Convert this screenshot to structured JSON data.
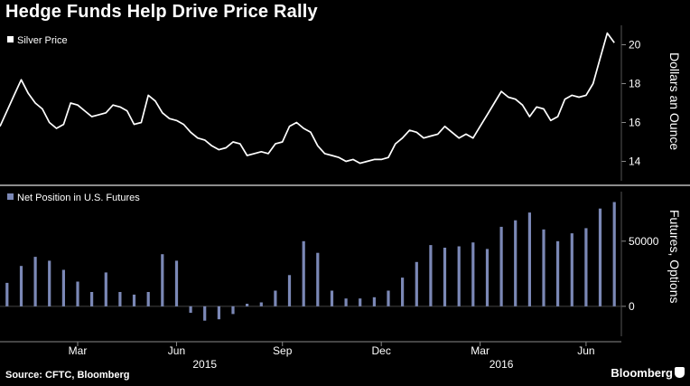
{
  "title": "Hedge Funds Help Drive Price Rally",
  "source": "Source: CFTC, Bloomberg",
  "brand": "Bloomberg",
  "colors": {
    "background": "#000000",
    "line": "#ffffff",
    "bar": "#7b88b6",
    "grid": "#444444"
  },
  "chart_data": [
    {
      "type": "line",
      "legend": [
        "Silver Price"
      ],
      "ylabel": "Dollars an Ounce",
      "yticks": [
        14,
        16,
        18,
        20
      ],
      "ylim": [
        13,
        21
      ],
      "xlim": [
        0,
        88
      ],
      "series": [
        {
          "name": "Silver Price",
          "x": [
            0,
            1,
            2,
            3,
            4,
            5,
            6,
            7,
            8,
            9,
            10,
            11,
            12,
            13,
            14,
            15,
            16,
            17,
            18,
            19,
            20,
            21,
            22,
            23,
            24,
            25,
            26,
            27,
            28,
            29,
            30,
            31,
            32,
            33,
            34,
            35,
            36,
            37,
            38,
            39,
            40,
            41,
            42,
            43,
            44,
            45,
            46,
            47,
            48,
            49,
            50,
            51,
            52,
            53,
            54,
            55,
            56,
            57,
            58,
            59,
            60,
            61,
            62,
            63,
            64,
            65,
            66,
            67,
            68,
            69,
            70,
            71,
            72,
            73,
            74,
            75,
            76,
            77,
            78,
            79,
            80,
            81,
            82,
            83,
            84,
            85,
            86,
            87
          ],
          "values": [
            15.8,
            16.6,
            17.4,
            18.2,
            17.5,
            17.0,
            16.7,
            16.0,
            15.7,
            15.9,
            17.0,
            16.9,
            16.6,
            16.3,
            16.4,
            16.5,
            16.9,
            16.8,
            16.6,
            15.9,
            16.0,
            17.4,
            17.1,
            16.5,
            16.2,
            16.1,
            15.9,
            15.5,
            15.2,
            15.1,
            14.8,
            14.6,
            14.7,
            15.0,
            14.9,
            14.3,
            14.4,
            14.5,
            14.4,
            14.9,
            15.0,
            15.8,
            16.0,
            15.7,
            15.5,
            14.8,
            14.4,
            14.3,
            14.2,
            14.0,
            14.1,
            13.9,
            14.0,
            14.1,
            14.1,
            14.2,
            14.9,
            15.2,
            15.6,
            15.5,
            15.2,
            15.3,
            15.4,
            15.8,
            15.5,
            15.2,
            15.4,
            15.2,
            15.8,
            16.4,
            17.0,
            17.6,
            17.3,
            17.2,
            16.9,
            16.3,
            16.8,
            16.7,
            16.1,
            16.3,
            17.2,
            17.4,
            17.3,
            17.4,
            18.0,
            19.3,
            20.6,
            20.1
          ]
        }
      ]
    },
    {
      "type": "bar",
      "legend": [
        "Net Position in U.S. Futures"
      ],
      "ylabel": "Futures, Options",
      "yticks": [
        0,
        50000
      ],
      "ylim": [
        -23000,
        88000
      ],
      "xlim": [
        0,
        88
      ],
      "series": [
        {
          "name": "Net Position in U.S. Futures",
          "x": [
            1,
            3,
            5,
            7,
            9,
            11,
            13,
            15,
            17,
            19,
            21,
            23,
            25,
            27,
            29,
            31,
            33,
            35,
            37,
            39,
            41,
            43,
            45,
            47,
            49,
            51,
            53,
            55,
            57,
            59,
            61,
            63,
            65,
            67,
            69,
            71,
            73,
            75,
            77,
            79,
            81,
            83,
            85,
            87
          ],
          "values": [
            18000,
            31000,
            38000,
            35000,
            28000,
            19000,
            11000,
            26000,
            11000,
            9000,
            11000,
            40000,
            35000,
            -5000,
            -11000,
            -10000,
            -6000,
            2000,
            3000,
            12000,
            24000,
            50000,
            41000,
            12000,
            6000,
            6000,
            7000,
            12000,
            22000,
            34000,
            47000,
            45000,
            46000,
            49000,
            44000,
            61000,
            66000,
            72000,
            59000,
            50000,
            56000,
            60000,
            75000,
            80000
          ]
        }
      ]
    },
    {
      "type": "axis",
      "month_ticks": [
        "Mar",
        "Jun",
        "Sep",
        "Dec",
        "Mar",
        "Jun"
      ],
      "month_tick_x": [
        11,
        25,
        40,
        54,
        68,
        83
      ],
      "year_labels": [
        "2015",
        "2016"
      ],
      "year_label_x": [
        29,
        71
      ]
    }
  ]
}
